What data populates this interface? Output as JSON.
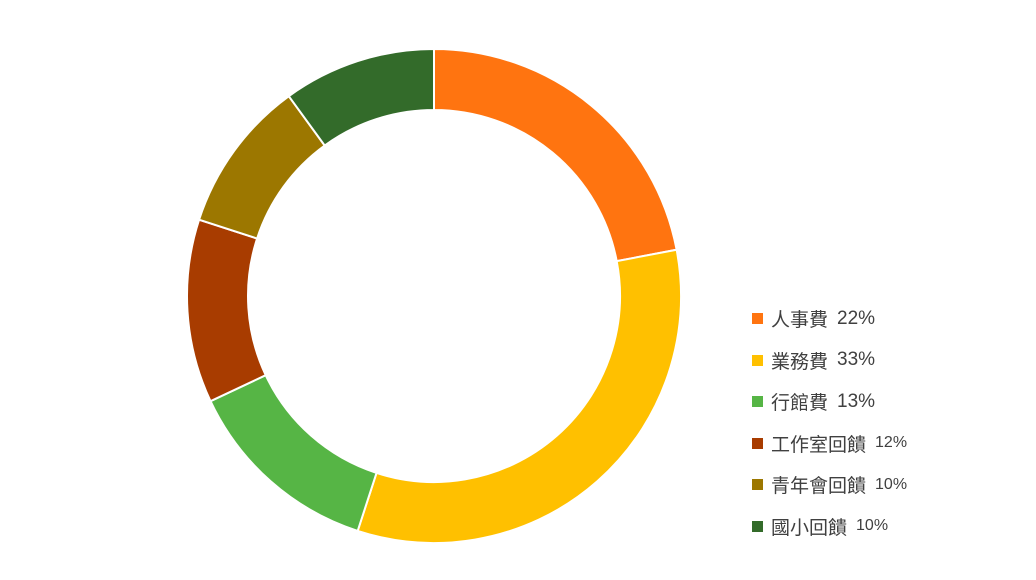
{
  "chart_data": {
    "type": "pie",
    "style": "donut",
    "legend_position": "right",
    "categories": [
      "人事費",
      "業務費",
      "行館費",
      "工作室回饋",
      "青年會回饋",
      "國小回饋"
    ],
    "values": [
      22,
      33,
      13,
      12,
      10,
      10
    ],
    "value_labels": [
      "22%",
      "33%",
      "13%",
      "12%",
      "10%",
      "10%"
    ],
    "colors": [
      "#FF7410",
      "#FFC000",
      "#56B545",
      "#A83C00",
      "#9C7700",
      "#336B2A"
    ]
  }
}
